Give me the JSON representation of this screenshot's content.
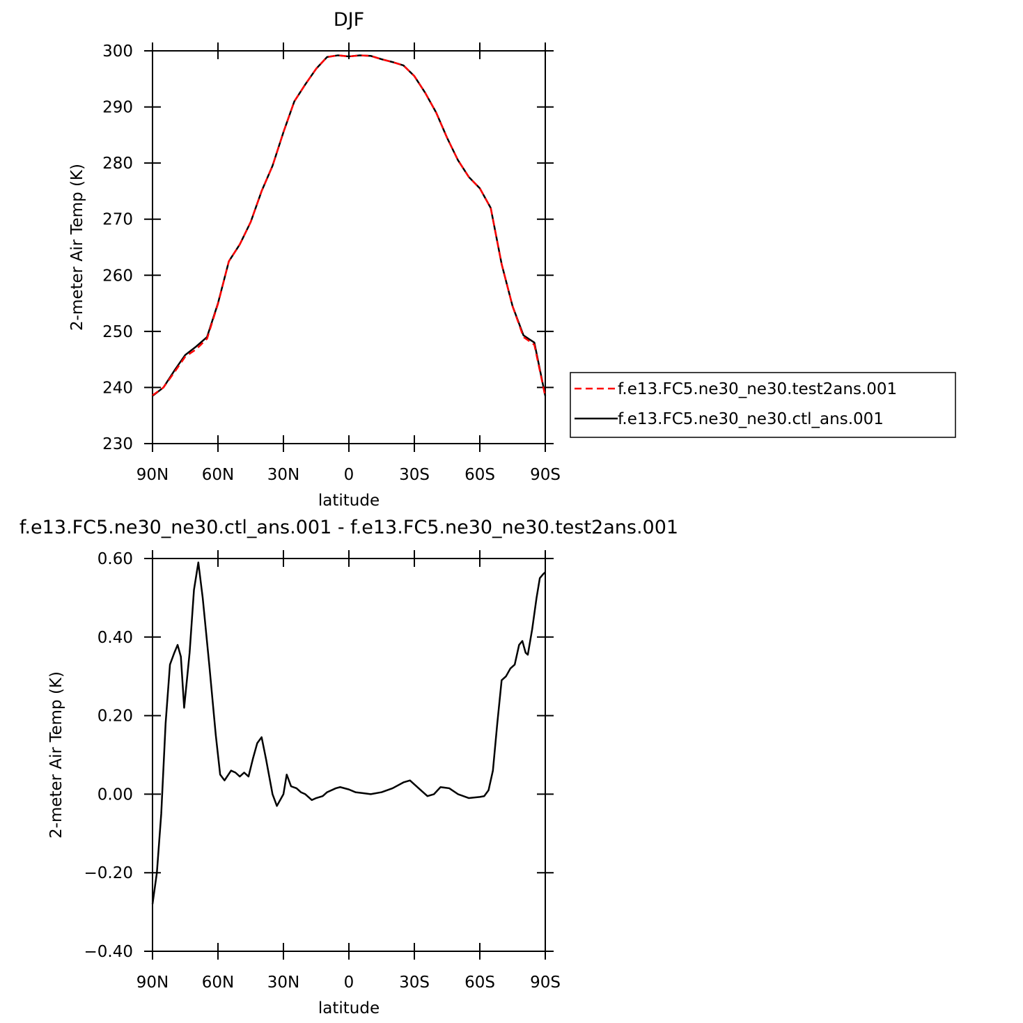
{
  "chart_data": [
    {
      "type": "line",
      "title": "DJF",
      "x_label": "latitude",
      "y_label": "2-meter Air Temp (K)",
      "x": [
        90,
        85,
        80,
        75,
        70,
        65,
        60,
        55,
        50,
        45,
        40,
        35,
        30,
        25,
        20,
        15,
        10,
        5,
        0,
        -5,
        -10,
        -15,
        -20,
        -25,
        -30,
        -35,
        -40,
        -45,
        -50,
        -55,
        -60,
        -65,
        -70,
        -75,
        -80,
        -85,
        -90
      ],
      "series": [
        {
          "name": "f.e13.FC5.ne30_ne30.test2ans.001",
          "color": "#ff0000",
          "line_style": "dashed",
          "values": [
            238.6,
            240.0,
            242.7,
            245.5,
            246.8,
            248.7,
            254.9,
            262.5,
            265.5,
            269.5,
            275.0,
            279.5,
            285.5,
            291.0,
            294.0,
            296.8,
            298.9,
            299.2,
            299.0,
            299.2,
            299.1,
            298.5,
            298.0,
            297.4,
            295.5,
            292.5,
            289.0,
            284.5,
            280.5,
            277.5,
            275.5,
            272.0,
            262.0,
            254.5,
            249.0,
            247.6,
            238.4
          ]
        },
        {
          "name": "f.e13.FC5.ne30_ne30.ctl_ans.001",
          "color": "#000000",
          "line_style": "solid",
          "values": [
            238.5,
            240.0,
            243.0,
            245.8,
            247.3,
            249.0,
            255.0,
            262.5,
            265.5,
            269.5,
            275.0,
            279.5,
            285.5,
            291.0,
            294.0,
            296.8,
            298.9,
            299.2,
            299.0,
            299.2,
            299.1,
            298.5,
            298.0,
            297.4,
            295.5,
            292.5,
            289.0,
            284.5,
            280.5,
            277.5,
            275.5,
            272.0,
            262.0,
            254.5,
            249.3,
            248.0,
            238.5
          ]
        }
      ],
      "xlim": [
        90,
        -90
      ],
      "xticks": [
        {
          "value": 90,
          "label": "90N"
        },
        {
          "value": 60,
          "label": "60N"
        },
        {
          "value": 30,
          "label": "30N"
        },
        0,
        {
          "value": -30,
          "label": "30S"
        },
        {
          "value": -60,
          "label": "60S"
        },
        {
          "value": -90,
          "label": "90S"
        }
      ],
      "ylim": [
        230,
        300
      ],
      "yticks": [
        230,
        240,
        250,
        260,
        270,
        280,
        290,
        300
      ],
      "legend": "right"
    },
    {
      "type": "line",
      "title": "f.e13.FC5.ne30_ne30.ctl_ans.001 - f.e13.FC5.ne30_ne30.test2ans.001",
      "x_label": "latitude",
      "y_label": "2-meter Air Temp (K)",
      "x": [
        90,
        88,
        86,
        84,
        82,
        80,
        78.5,
        77,
        75.5,
        73,
        71,
        69,
        67,
        64,
        61,
        59,
        57,
        54,
        52,
        50,
        48,
        46,
        44,
        42,
        40,
        38,
        35,
        33,
        30,
        28.5,
        26.5,
        24,
        22,
        20,
        17,
        15,
        12,
        10,
        6,
        4,
        0,
        -3,
        -6,
        -10,
        -15,
        -20,
        -25,
        -28,
        -33,
        -36,
        -39,
        -42,
        -46,
        -50,
        -55,
        -60,
        -62,
        -64,
        -66,
        -68,
        -70,
        -72,
        -74,
        -76,
        -78,
        -79.5,
        -81,
        -82,
        -84,
        -86,
        -87.5,
        -89,
        -90
      ],
      "series": [
        {
          "name": "f.e13.FC5.ne30_ne30.ctl_ans.001 - f.e13.FC5.ne30_ne30.test2ans.001",
          "color": "#000000",
          "line_style": "solid",
          "values": [
            -0.28,
            -0.2,
            -0.05,
            0.18,
            0.33,
            0.36,
            0.38,
            0.35,
            0.22,
            0.36,
            0.52,
            0.59,
            0.5,
            0.33,
            0.15,
            0.05,
            0.035,
            0.06,
            0.055,
            0.045,
            0.055,
            0.045,
            0.09,
            0.13,
            0.145,
            0.09,
            0.0,
            -0.03,
            0.0,
            0.05,
            0.02,
            0.015,
            0.005,
            0.0,
            -0.015,
            -0.01,
            -0.005,
            0.005,
            0.015,
            0.018,
            0.012,
            0.005,
            0.003,
            0.0,
            0.005,
            0.015,
            0.03,
            0.035,
            0.01,
            -0.005,
            0.0,
            0.018,
            0.015,
            0.0,
            -0.01,
            -0.007,
            -0.005,
            0.01,
            0.06,
            0.18,
            0.29,
            0.3,
            0.32,
            0.33,
            0.38,
            0.39,
            0.36,
            0.355,
            0.42,
            0.5,
            0.55,
            0.56,
            0.565
          ]
        }
      ],
      "xlim": [
        90,
        -90
      ],
      "xticks": [
        {
          "value": 90,
          "label": "90N"
        },
        {
          "value": 60,
          "label": "60N"
        },
        {
          "value": 30,
          "label": "30N"
        },
        0,
        {
          "value": -30,
          "label": "30S"
        },
        {
          "value": -60,
          "label": "60S"
        },
        {
          "value": -90,
          "label": "90S"
        }
      ],
      "ylim": [
        -0.4,
        0.6
      ],
      "yticks": [
        {
          "value": -0.4,
          "label": "−0.40"
        },
        {
          "value": -0.2,
          "label": "−0.20"
        },
        {
          "value": 0,
          "label": "0.00"
        },
        {
          "value": 0.2,
          "label": "0.20"
        },
        {
          "value": 0.4,
          "label": "0.40"
        },
        {
          "value": 0.6,
          "label": "0.60"
        }
      ]
    }
  ]
}
